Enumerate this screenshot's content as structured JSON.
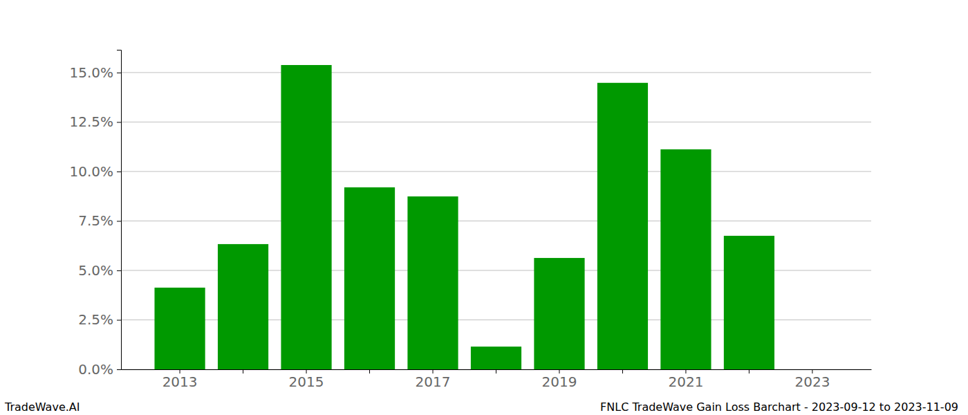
{
  "chart_data": {
    "type": "bar",
    "title": "FNLC TradeWave Gain Loss Barchart - 2023-09-12 to 2023-11-09",
    "annotations": [
      "TradeWave.AI"
    ],
    "categories": [
      "2013",
      null,
      "2015",
      null,
      "2017",
      null,
      "2019",
      null,
      "2021",
      null,
      "2023"
    ],
    "values": [
      4.13,
      6.33,
      15.38,
      9.2,
      8.74,
      1.15,
      5.63,
      14.48,
      11.12,
      6.75,
      0
    ],
    "color": "#009900",
    "ylim": [
      0,
      16.15
    ],
    "yticks": [
      {
        "value": 0,
        "label": "0.0%"
      },
      {
        "value": 2.5,
        "label": "2.5%"
      },
      {
        "value": 5,
        "label": "5.0%"
      },
      {
        "value": 7.5,
        "label": "7.5%"
      },
      {
        "value": 10,
        "label": "10.0%"
      },
      {
        "value": 12.5,
        "label": "12.5%"
      },
      {
        "value": 15,
        "label": "15.0%"
      }
    ],
    "grid": true
  }
}
